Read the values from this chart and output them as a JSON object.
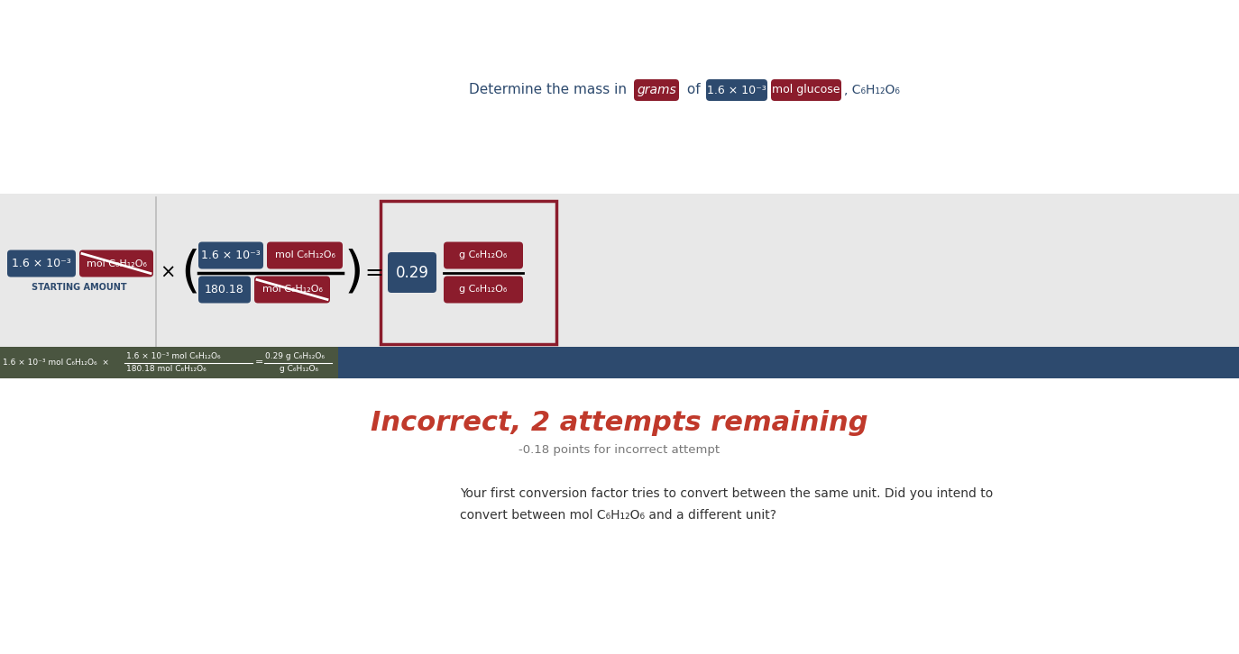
{
  "bg_color": "#ffffff",
  "dark_blue": "#2d4a6e",
  "dark_red": "#8b1c2c",
  "gray_bg": "#e8e8e8",
  "title_color": "#2d4a6e",
  "label_grams": "grams",
  "label_mol_val": "1.6 × 10⁻³",
  "label_mol_glucose": "mol glucose",
  "label_formula": ", C₆H₁₂O₆",
  "starting_amount_label": "STARTING AMOUNT",
  "sa_val": "1.6 × 10⁻³",
  "sa_unit": "mol C₆H₁₂O₆",
  "fraction_top_left": "1.6 × 10⁻³",
  "fraction_top_right": "mol C₆H₁₂O₆",
  "fraction_bot_left": "180.18",
  "fraction_bot_right": "mol C₆H₁₂O₆",
  "result_val": "0.29",
  "result_top": "g C₆H₁₂O₆",
  "result_bot": "g C₆H₁₂O₆",
  "olive_color": "#4a5540",
  "bottom_bar_color": "#2d4a6e",
  "incorrect_text": "Incorrect, 2 attempts remaining",
  "incorrect_color": "#c0392b",
  "points_text": "-0.18 points for incorrect attempt",
  "feedback_line1": "Your first conversion factor tries to convert between the same unit. Did you intend to",
  "feedback_line2": "convert between mol C₆H₁₂O₆ and a different unit?"
}
